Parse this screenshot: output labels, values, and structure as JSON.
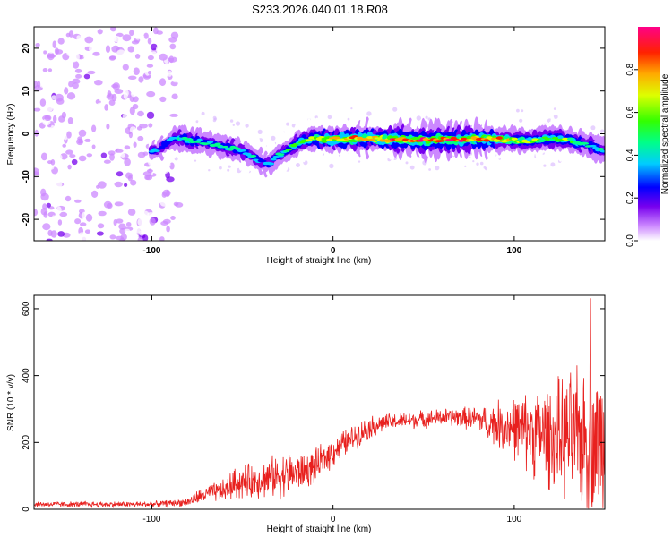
{
  "chart_data": [
    {
      "type": "heatmap",
      "title": "S233.2026.040.01.18.R08",
      "xlabel": "Height of straight line (km)",
      "ylabel": "Frequency (Hz)",
      "xlim": [
        -165,
        150
      ],
      "ylim": [
        -25,
        25
      ],
      "xticks": [
        -100,
        0,
        100
      ],
      "yticks": [
        -20,
        -10,
        0,
        10,
        20
      ],
      "colorbar": {
        "label": "Normalized spectral amplitude",
        "range": [
          0,
          1
        ],
        "ticks": [
          "0.0",
          "0.2",
          "0.4",
          "0.6",
          "0.8"
        ],
        "tick_values": [
          0.0,
          0.2,
          0.4,
          0.6,
          0.8
        ]
      },
      "ridge": {
        "description": "frequency of peak amplitude vs height",
        "x": [
          -100,
          -95,
          -90,
          -85,
          -80,
          -70,
          -60,
          -50,
          -40,
          -35,
          -30,
          -25,
          -20,
          -15,
          -10,
          -5,
          0,
          10,
          20,
          30,
          40,
          50,
          60,
          70,
          80,
          90,
          100,
          110,
          120,
          130,
          140,
          150
        ],
        "freq": [
          -4,
          -3.5,
          -1.5,
          -1,
          -1.5,
          -2,
          -3,
          -4,
          -6.5,
          -7,
          -5,
          -4,
          -2,
          -1.5,
          -1,
          -1.2,
          -1.3,
          -1,
          -1,
          -1.3,
          -1.2,
          -1.5,
          -1.3,
          -1.4,
          -1.2,
          -1.3,
          -1.5,
          -1.6,
          -1,
          -1.5,
          -2.5,
          -4
        ],
        "amplitude": [
          0.4,
          0.35,
          0.4,
          0.45,
          0.5,
          0.45,
          0.45,
          0.45,
          0.4,
          0.4,
          0.45,
          0.5,
          0.55,
          0.6,
          0.7,
          0.75,
          0.8,
          0.85,
          0.85,
          0.9,
          0.9,
          0.95,
          0.95,
          0.9,
          0.85,
          0.8,
          0.7,
          0.65,
          0.65,
          0.6,
          0.5,
          0.45
        ]
      },
      "noise_region_x": [
        -165,
        -85
      ]
    },
    {
      "type": "line",
      "xlabel": "Height of straight line (km)",
      "ylabel": "SNR (10 * v/v)",
      "xlim": [
        -165,
        150
      ],
      "ylim": [
        0,
        640
      ],
      "xticks": [
        -100,
        0,
        100
      ],
      "yticks": [
        0,
        200,
        400,
        600
      ],
      "series": [
        {
          "name": "SNR",
          "color": "#e8201e",
          "x": [
            -165,
            -140,
            -120,
            -100,
            -90,
            -80,
            -75,
            -70,
            -60,
            -55,
            -50,
            -45,
            -40,
            -35,
            -30,
            -25,
            -20,
            -15,
            -10,
            -5,
            0,
            10,
            20,
            30,
            40,
            50,
            60,
            70,
            80,
            90,
            100,
            110,
            120,
            130,
            140,
            150
          ],
          "base": [
            15,
            15,
            15,
            15,
            18,
            22,
            35,
            45,
            55,
            75,
            80,
            85,
            90,
            95,
            100,
            105,
            110,
            115,
            125,
            150,
            175,
            210,
            245,
            260,
            265,
            270,
            275,
            275,
            270,
            255,
            245,
            230,
            220,
            215,
            210,
            200
          ],
          "spread": [
            10,
            10,
            10,
            10,
            12,
            15,
            25,
            30,
            40,
            55,
            60,
            60,
            65,
            70,
            75,
            80,
            70,
            60,
            60,
            55,
            55,
            45,
            40,
            30,
            30,
            30,
            30,
            35,
            45,
            80,
            110,
            150,
            180,
            220,
            260,
            250
          ],
          "peak": {
            "x": 142,
            "y": 630
          }
        }
      ]
    }
  ],
  "colors": {
    "line": "#e8201e",
    "frame": "#000000",
    "background": "#ffffff"
  }
}
